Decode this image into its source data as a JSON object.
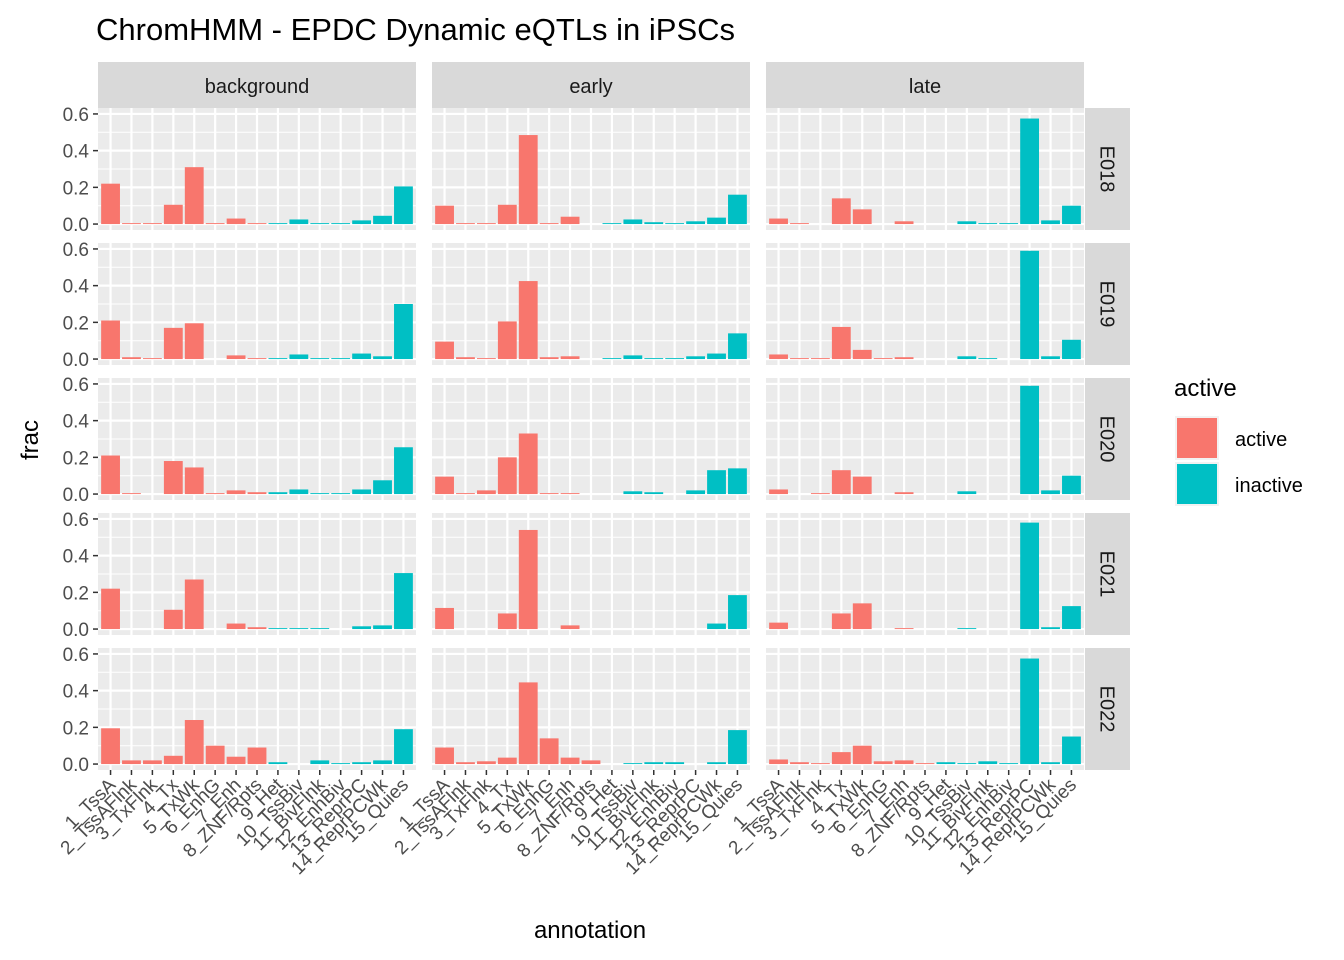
{
  "chart_data": {
    "type": "bar",
    "title": "ChromHMM - EPDC Dynamic eQTLs in iPSCs",
    "xlabel": "annotation",
    "ylabel": "frac",
    "ylim": [
      0,
      0.6
    ],
    "yticks": [
      "0.0",
      "0.2",
      "0.4",
      "0.6"
    ],
    "facet_cols": [
      "background",
      "early",
      "late"
    ],
    "facet_rows": [
      "E018",
      "E019",
      "E020",
      "E021",
      "E022"
    ],
    "categories": [
      "1_TssA",
      "2_TssAFlnk",
      "3_TxFlnk",
      "4_Tx",
      "5_TxWk",
      "6_EnhG",
      "7_Enh",
      "8_ZNF/Rpts",
      "9_Het",
      "10_TssBiv",
      "11_BivFlnk",
      "12_EnhBiv",
      "13_ReprPC",
      "14_ReprPCWk",
      "15_Quies"
    ],
    "category_group": [
      "active",
      "active",
      "active",
      "active",
      "active",
      "active",
      "active",
      "active",
      "inactive",
      "inactive",
      "inactive",
      "inactive",
      "inactive",
      "inactive",
      "inactive"
    ],
    "legend": {
      "title": "active",
      "placement": "right",
      "entries": [
        {
          "label": "active",
          "color": "#F8766D"
        },
        {
          "label": "inactive",
          "color": "#00BFC4"
        }
      ]
    },
    "grid": true,
    "panels": {
      "E018": {
        "background": [
          0.22,
          0.005,
          0.005,
          0.105,
          0.31,
          0.005,
          0.03,
          0.005,
          0.005,
          0.025,
          0.005,
          0.005,
          0.02,
          0.045,
          0.205
        ],
        "early": [
          0.1,
          0.005,
          0.005,
          0.105,
          0.485,
          0.005,
          0.04,
          0.0,
          0.005,
          0.025,
          0.01,
          0.005,
          0.015,
          0.035,
          0.16
        ],
        "late": [
          0.03,
          0.005,
          0.0,
          0.14,
          0.08,
          0.0,
          0.015,
          0.0,
          0.0,
          0.015,
          0.005,
          0.005,
          0.575,
          0.02,
          0.1
        ]
      },
      "E019": {
        "background": [
          0.21,
          0.01,
          0.005,
          0.17,
          0.195,
          0.0,
          0.02,
          0.005,
          0.005,
          0.025,
          0.005,
          0.005,
          0.03,
          0.015,
          0.3
        ],
        "early": [
          0.095,
          0.01,
          0.005,
          0.205,
          0.425,
          0.01,
          0.015,
          0.0,
          0.005,
          0.02,
          0.005,
          0.005,
          0.015,
          0.03,
          0.14
        ],
        "late": [
          0.025,
          0.005,
          0.005,
          0.175,
          0.05,
          0.005,
          0.01,
          0.0,
          0.0,
          0.015,
          0.005,
          0.0,
          0.59,
          0.015,
          0.105
        ]
      },
      "E020": {
        "background": [
          0.21,
          0.005,
          0.0,
          0.18,
          0.145,
          0.005,
          0.02,
          0.01,
          0.01,
          0.025,
          0.005,
          0.005,
          0.025,
          0.075,
          0.255
        ],
        "early": [
          0.095,
          0.005,
          0.02,
          0.2,
          0.33,
          0.005,
          0.005,
          0.0,
          0.0,
          0.015,
          0.01,
          0.0,
          0.02,
          0.13,
          0.14
        ],
        "late": [
          0.025,
          0.0,
          0.005,
          0.13,
          0.095,
          0.0,
          0.01,
          0.0,
          0.0,
          0.015,
          0.0,
          0.0,
          0.59,
          0.02,
          0.1
        ]
      },
      "E021": {
        "background": [
          0.22,
          0.0,
          0.0,
          0.105,
          0.27,
          0.0,
          0.03,
          0.01,
          0.005,
          0.005,
          0.005,
          0.0,
          0.015,
          0.02,
          0.305
        ],
        "early": [
          0.115,
          0.0,
          0.0,
          0.085,
          0.54,
          0.0,
          0.02,
          0.0,
          0.0,
          0.0,
          0.0,
          0.0,
          0.0,
          0.03,
          0.185
        ],
        "late": [
          0.035,
          0.0,
          0.0,
          0.085,
          0.14,
          0.0,
          0.005,
          0.0,
          0.0,
          0.005,
          0.0,
          0.0,
          0.58,
          0.01,
          0.125
        ]
      },
      "E022": {
        "background": [
          0.195,
          0.02,
          0.02,
          0.045,
          0.24,
          0.1,
          0.04,
          0.09,
          0.01,
          0.0,
          0.02,
          0.005,
          0.01,
          0.02,
          0.19
        ],
        "early": [
          0.09,
          0.01,
          0.015,
          0.035,
          0.445,
          0.14,
          0.035,
          0.02,
          0.0,
          0.005,
          0.01,
          0.01,
          0.0,
          0.01,
          0.185
        ],
        "late": [
          0.025,
          0.01,
          0.005,
          0.065,
          0.1,
          0.015,
          0.02,
          0.005,
          0.01,
          0.005,
          0.015,
          0.005,
          0.575,
          0.01,
          0.15
        ]
      }
    }
  }
}
